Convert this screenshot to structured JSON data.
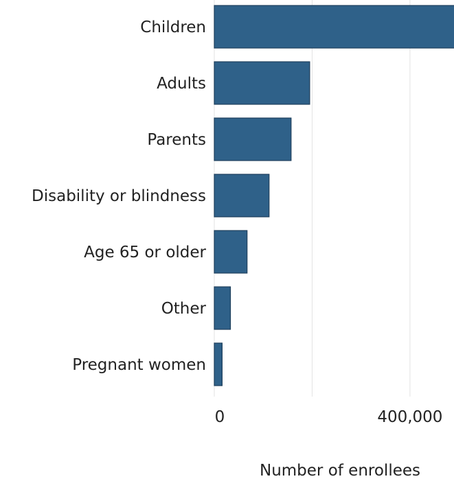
{
  "chart_data": {
    "type": "bar",
    "orientation": "horizontal",
    "title": "",
    "xlabel": "Number of enrollees",
    "ylabel": "",
    "categories": [
      "Children",
      "Adults",
      "Parents",
      "Disability or blindness",
      "Age 65 or older",
      "Other",
      "Pregnant women"
    ],
    "values": [
      500000,
      195000,
      157000,
      112000,
      67000,
      33000,
      16000
    ],
    "xlim": [
      0,
      490000
    ],
    "x_ticks": [
      0,
      400000
    ],
    "x_tick_labels": [
      "0",
      "400,000"
    ],
    "gridlines": [
      200000,
      400000
    ],
    "grid": true,
    "legend": "none",
    "bar_color": "#2f6189",
    "bar_edge_color": "#1f3f5c",
    "gridline_color": "#e3e3e3"
  }
}
